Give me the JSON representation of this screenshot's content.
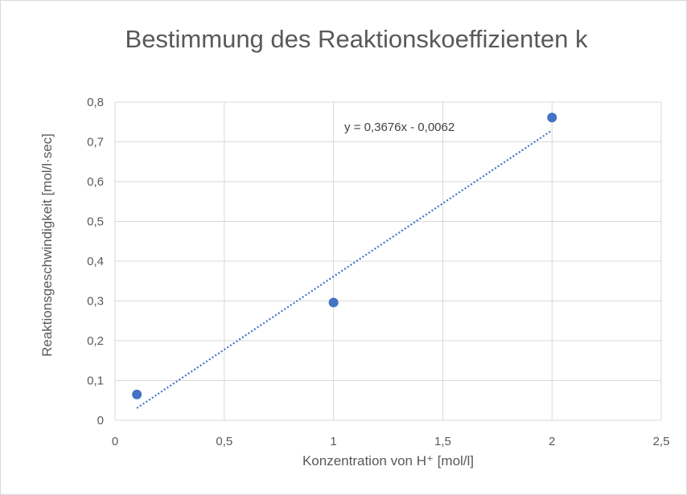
{
  "chart_data": {
    "type": "scatter",
    "title": "Bestimmung des Reaktionskoeffizienten k",
    "xlabel": "Konzentration von H⁺ [mol/l]",
    "ylabel": "Reaktionsgeschwindigkeit  [mol/l·sec]",
    "xlim": [
      0,
      2.5
    ],
    "ylim": [
      0,
      0.8
    ],
    "x_ticks": [
      "0",
      "0,5",
      "1",
      "1,5",
      "2",
      "2,5"
    ],
    "y_ticks": [
      "0",
      "0,1",
      "0,2",
      "0,3",
      "0,4",
      "0,5",
      "0,6",
      "0,7",
      "0,8"
    ],
    "grid": true,
    "series": [
      {
        "x": [
          0.1,
          1,
          2
        ],
        "y": [
          0.065,
          0.296,
          0.761
        ],
        "color": "#4472c4"
      }
    ],
    "trendline": {
      "type": "linear",
      "slope": 0.3676,
      "intercept": -0.0062,
      "x_range": [
        0.1,
        2
      ],
      "equation": "y = 0,3676x - 0,0062",
      "style": "dotted",
      "color": "#4472c4"
    }
  }
}
